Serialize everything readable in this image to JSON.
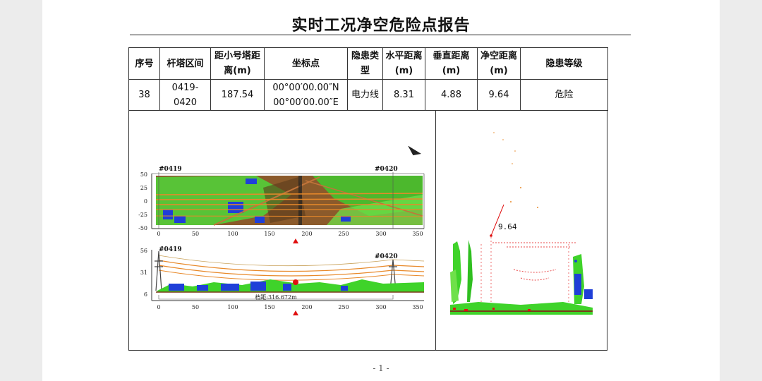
{
  "report": {
    "title": "实时工况净空危险点报告",
    "page_number": "- 1 -"
  },
  "table": {
    "headers": [
      "序号",
      "杆塔区间",
      "距小号塔距离(m)",
      "坐标点",
      "隐患类型",
      "水平距离(m)",
      "垂直距离(m)",
      "净空距离(m)",
      "隐患等级"
    ],
    "row": {
      "index": "38",
      "section": "0419-0420",
      "dist_small_tower": "187.54",
      "coord_lat": "00°00′00.00″N",
      "coord_lon": "00°00′00.00″E",
      "hazard_type": "电力线",
      "horizontal": "8.31",
      "vertical": "4.88",
      "clearance": "9.64",
      "level": "危险"
    }
  },
  "plan_view": {
    "tower_start": "#0419",
    "tower_end": "#0420",
    "y_ticks": [
      "50",
      "25",
      "0",
      "-25",
      "-50"
    ],
    "x_ticks": [
      "0",
      "50",
      "100",
      "150",
      "200",
      "250",
      "300",
      "350"
    ]
  },
  "profile_view": {
    "tower_start": "#0419",
    "tower_end": "#0420",
    "y_ticks": [
      "56",
      "31",
      "6"
    ],
    "x_ticks": [
      "0",
      "50",
      "100",
      "150",
      "200",
      "250",
      "300",
      "350"
    ],
    "span_label": "档距:316.672m"
  },
  "cross_section": {
    "clearance_label": "9.64"
  },
  "colors": {
    "ground_green": "#3fd32a",
    "building_blue": "#1f3fd8",
    "conductor_orange": "#e8892a",
    "hazard_red": "#e01010",
    "soil_brown": "#7a3a1a"
  }
}
